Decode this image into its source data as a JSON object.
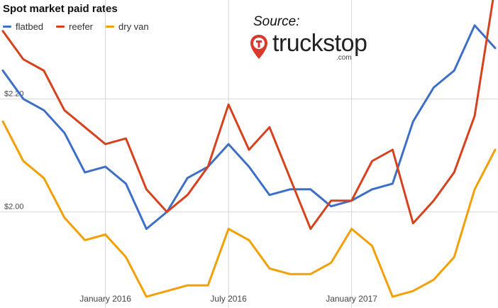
{
  "title": "Spot market paid rates",
  "source": {
    "label": "Source:",
    "logo_name": "truckstop",
    "logo_suffix": ".com"
  },
  "chart_data": {
    "type": "line",
    "title": "Spot market paid rates",
    "xlabel": "",
    "ylabel": "",
    "ylim": [
      1.83,
      2.375
    ],
    "grid": true,
    "legend_placement": "top-left",
    "x": [
      "2015-08",
      "2015-09",
      "2015-10",
      "2015-11",
      "2015-12",
      "2016-01",
      "2016-02",
      "2016-03",
      "2016-04",
      "2016-05",
      "2016-06",
      "2016-07",
      "2016-08",
      "2016-09",
      "2016-10",
      "2016-11",
      "2016-12",
      "2017-01",
      "2017-02",
      "2017-03",
      "2017-04",
      "2017-05",
      "2017-06",
      "2017-07",
      "2017-08"
    ],
    "x_tick_labels": [
      {
        "x": "2016-01",
        "label": "January 2016"
      },
      {
        "x": "2016-07",
        "label": "July 2016"
      },
      {
        "x": "2017-01",
        "label": "January 2017"
      }
    ],
    "y_tick_labels": [
      {
        "value": 2.2,
        "label": "$2.20"
      },
      {
        "value": 2.0,
        "label": "$2.00"
      }
    ],
    "series": [
      {
        "name": "flatbed",
        "color": "#3d6fc6",
        "values": [
          2.25,
          2.2,
          2.18,
          2.14,
          2.07,
          2.08,
          2.05,
          1.97,
          2.0,
          2.06,
          2.08,
          2.12,
          2.08,
          2.03,
          2.04,
          2.04,
          2.01,
          2.02,
          2.04,
          2.05,
          2.16,
          2.22,
          2.25,
          2.33,
          2.29
        ]
      },
      {
        "name": "reefer",
        "color": "#d6411e",
        "values": [
          2.32,
          2.27,
          2.25,
          2.18,
          2.15,
          2.12,
          2.13,
          2.04,
          2.0,
          2.03,
          2.08,
          2.19,
          2.11,
          2.15,
          2.06,
          1.97,
          2.02,
          2.02,
          2.09,
          2.11,
          1.98,
          2.02,
          2.07,
          2.17,
          2.4
        ]
      },
      {
        "name": "dry van",
        "color": "#f2a007",
        "values": [
          2.16,
          2.09,
          2.06,
          1.99,
          1.95,
          1.96,
          1.92,
          1.85,
          1.86,
          1.87,
          1.87,
          1.97,
          1.95,
          1.9,
          1.89,
          1.89,
          1.91,
          1.97,
          1.94,
          1.85,
          1.86,
          1.88,
          1.92,
          2.04,
          2.11
        ]
      }
    ]
  }
}
